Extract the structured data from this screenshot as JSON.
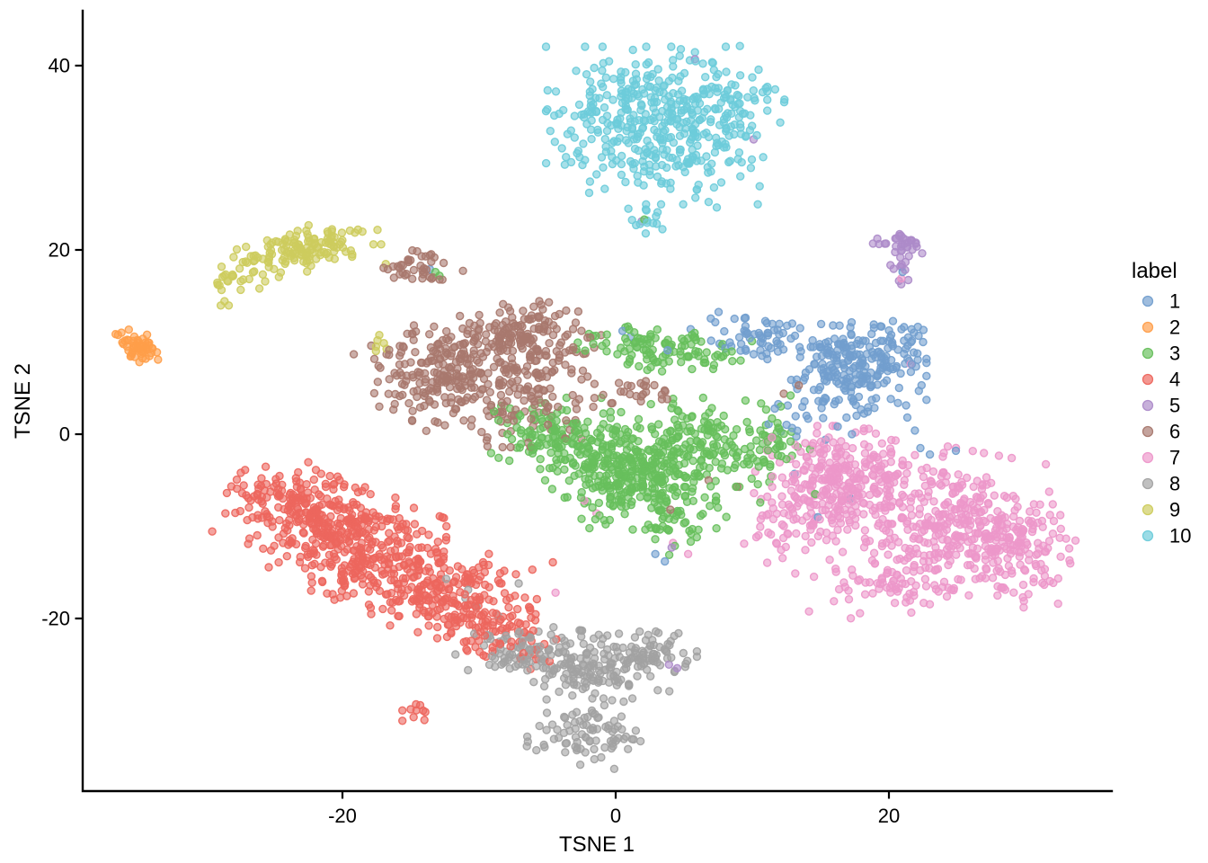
{
  "chart_data": {
    "type": "scatter",
    "title": "",
    "xlabel": "TSNE 1",
    "ylabel": "TSNE 2",
    "xlim": [
      -39,
      36.5
    ],
    "ylim": [
      -38.7,
      45.9
    ],
    "x_ticks": [
      -20,
      0,
      20
    ],
    "y_ticks": [
      -20,
      0,
      20,
      40
    ],
    "grid": false,
    "legend_title": "label",
    "legend_position": "right",
    "point_alpha": 0.6,
    "seed": 42,
    "series": [
      {
        "name": "1",
        "color": "#729ECE",
        "blobs": [
          {
            "x": 17.8,
            "y": 8.0,
            "sx": 2.2,
            "sy": 1.9,
            "rot": 0,
            "n": 200
          },
          {
            "x": 11.0,
            "y": 10.3,
            "sx": 2.6,
            "sy": 1.1,
            "rot": -12,
            "n": 70
          },
          {
            "x": 15.5,
            "y": 3.0,
            "sx": 2.6,
            "sy": 1.6,
            "rot": 0,
            "n": 45
          },
          {
            "x": 21.8,
            "y": 10.3,
            "sx": 0.8,
            "sy": 0.6,
            "rot": 0,
            "n": 10
          }
        ],
        "strays": [
          [
            0.5,
            11.2
          ],
          [
            1.1,
            10.6
          ],
          [
            3.8,
            9.1
          ],
          [
            -13.6,
            17.9
          ],
          [
            22.3,
            -1.5
          ],
          [
            23.0,
            -2.2
          ],
          [
            21.9,
            0.4
          ],
          [
            13.1,
            -4.3
          ],
          [
            17.2,
            -7.0
          ],
          [
            14.8,
            -9.0
          ],
          [
            21.0,
            17.6
          ],
          [
            2.9,
            -13.0
          ],
          [
            3.6,
            -13.8
          ],
          [
            22.5,
            10.0
          ],
          [
            24.9,
            -1.8
          ]
        ]
      },
      {
        "name": "2",
        "color": "#FF9E4A",
        "blobs": [
          {
            "x": -35.1,
            "y": 9.3,
            "sx": 0.6,
            "sy": 0.95,
            "rot": 35,
            "n": 50
          }
        ],
        "strays": [
          [
            -33.5,
            8.1
          ],
          [
            -34.3,
            10.8
          ]
        ]
      },
      {
        "name": "3",
        "color": "#67BF5C",
        "blobs": [
          {
            "x": -5.5,
            "y": -0.2,
            "sx": 1.7,
            "sy": 1.6,
            "rot": 0,
            "n": 90
          },
          {
            "x": 1.5,
            "y": -4.5,
            "sx": 2.6,
            "sy": 2.6,
            "rot": 0,
            "n": 300
          },
          {
            "x": 3.5,
            "y": 9.3,
            "sx": 2.8,
            "sy": 1.1,
            "rot": -8,
            "n": 110
          },
          {
            "x": 6.5,
            "y": -1.0,
            "sx": 2.4,
            "sy": 2.2,
            "rot": 0,
            "n": 130
          },
          {
            "x": -1.5,
            "y": -1.0,
            "sx": 2.0,
            "sy": 2.2,
            "rot": 0,
            "n": 80
          },
          {
            "x": 11.3,
            "y": -2.0,
            "sx": 1.3,
            "sy": 2.4,
            "rot": 0,
            "n": 45
          },
          {
            "x": 4.5,
            "y": -9.5,
            "sx": 1.6,
            "sy": 1.6,
            "rot": 0,
            "n": 40
          }
        ],
        "strays": [
          [
            -13.2,
            17.6
          ],
          [
            -12.9,
            17.2
          ],
          [
            2.1,
            23.3
          ],
          [
            12.8,
            4.2
          ],
          [
            14.6,
            -6.5
          ],
          [
            11.0,
            1.0
          ],
          [
            -8.9,
            2.5
          ]
        ]
      },
      {
        "name": "4",
        "color": "#ED665D",
        "blobs": [
          {
            "x": -22.5,
            "y": -8.5,
            "sx": 2.8,
            "sy": 2.2,
            "rot": -25,
            "n": 260
          },
          {
            "x": -17.5,
            "y": -13.0,
            "sx": 3.2,
            "sy": 2.6,
            "rot": -30,
            "n": 280
          },
          {
            "x": -12.0,
            "y": -18.0,
            "sx": 2.8,
            "sy": 2.0,
            "rot": -25,
            "n": 180
          },
          {
            "x": -8.0,
            "y": -21.5,
            "sx": 1.8,
            "sy": 1.4,
            "rot": -20,
            "n": 60
          },
          {
            "x": -14.6,
            "y": -30.4,
            "sx": 0.45,
            "sy": 0.5,
            "rot": 0,
            "n": 10
          }
        ],
        "strays": [
          [
            -9.3,
            -14.2
          ],
          [
            -7.3,
            -15.2
          ],
          [
            -6.1,
            -14.7
          ],
          [
            -4.6,
            -13.9
          ]
        ]
      },
      {
        "name": "5",
        "color": "#AD8BC9",
        "blobs": [
          {
            "x": 21.2,
            "y": 20.6,
            "sx": 0.55,
            "sy": 0.75,
            "rot": 0,
            "n": 26
          },
          {
            "x": 20.9,
            "y": 17.9,
            "sx": 0.35,
            "sy": 0.9,
            "rot": 0,
            "n": 12
          },
          {
            "x": 19.2,
            "y": 20.8,
            "sx": 0.5,
            "sy": 0.3,
            "rot": 0,
            "n": 5
          }
        ],
        "strays": [
          [
            5.8,
            40.7
          ],
          [
            10.1,
            32.0
          ],
          [
            1.9,
            23.1
          ],
          [
            3.9,
            -25.0
          ],
          [
            4.5,
            -25.4
          ],
          [
            4.1,
            -12.3
          ]
        ]
      },
      {
        "name": "6",
        "color": "#A8786E",
        "blobs": [
          {
            "x": -12.8,
            "y": 6.3,
            "sx": 2.4,
            "sy": 2.6,
            "rot": 20,
            "n": 210
          },
          {
            "x": -7.0,
            "y": 10.8,
            "sx": 2.6,
            "sy": 1.7,
            "rot": -10,
            "n": 170
          },
          {
            "x": -6.5,
            "y": 4.0,
            "sx": 2.3,
            "sy": 2.4,
            "rot": 0,
            "n": 110
          },
          {
            "x": -14.6,
            "y": 18.0,
            "sx": 1.5,
            "sy": 0.8,
            "rot": -15,
            "n": 40
          },
          {
            "x": 1.6,
            "y": 4.3,
            "sx": 1.4,
            "sy": 0.9,
            "rot": 0,
            "n": 25
          }
        ],
        "strays": [
          [
            -2.4,
            6.9
          ],
          [
            13.4,
            5.3
          ],
          [
            12.3,
            4.4
          ],
          [
            -2.5,
            -0.5
          ],
          [
            4.0,
            -8.2
          ],
          [
            -17.3,
            3.0
          ],
          [
            6.8,
            -5.0
          ],
          [
            8.9,
            -5.7
          ]
        ]
      },
      {
        "name": "7",
        "color": "#ED97CA",
        "blobs": [
          {
            "x": 16.5,
            "y": -4.5,
            "sx": 2.4,
            "sy": 2.4,
            "rot": 0,
            "n": 240
          },
          {
            "x": 23.5,
            "y": -9.5,
            "sx": 3.8,
            "sy": 3.6,
            "rot": -15,
            "n": 380
          },
          {
            "x": 29.5,
            "y": -13.0,
            "sx": 2.2,
            "sy": 2.4,
            "rot": 0,
            "n": 120
          },
          {
            "x": 13.0,
            "y": -9.0,
            "sx": 1.6,
            "sy": 2.2,
            "rot": 0,
            "n": 70
          },
          {
            "x": 20.0,
            "y": -16.5,
            "sx": 2.6,
            "sy": 1.6,
            "rot": 0,
            "n": 60
          }
        ],
        "strays": [
          [
            -2.3,
            -7.2
          ],
          [
            -1.4,
            -8.6
          ],
          [
            -4.4,
            -17.2
          ],
          [
            21.6,
            7.6
          ],
          [
            20.9,
            16.9
          ],
          [
            4.2,
            -11.8
          ],
          [
            5.3,
            -13.0
          ],
          [
            33.2,
            -12.4
          ]
        ]
      },
      {
        "name": "8",
        "color": "#A2A2A2",
        "blobs": [
          {
            "x": -6.5,
            "y": -23.5,
            "sx": 2.2,
            "sy": 1.4,
            "rot": -15,
            "n": 90
          },
          {
            "x": -1.5,
            "y": -25.0,
            "sx": 2.6,
            "sy": 1.6,
            "rot": -10,
            "n": 130
          },
          {
            "x": 2.8,
            "y": -23.8,
            "sx": 1.4,
            "sy": 1.1,
            "rot": 0,
            "n": 55
          },
          {
            "x": -2.0,
            "y": -32.5,
            "sx": 2.0,
            "sy": 1.7,
            "rot": 0,
            "n": 85
          }
        ],
        "strays": [
          [
            -10.8,
            -16.9
          ],
          [
            -10.2,
            -18.7
          ],
          [
            -11.0,
            -17.8
          ],
          [
            -7.1,
            -16.2
          ],
          [
            -12.4,
            -15.7
          ],
          [
            4.6,
            -21.6
          ],
          [
            -5.8,
            -34.3
          ]
        ]
      },
      {
        "name": "9",
        "color": "#CDCC5D",
        "blobs": [
          {
            "x": -22.3,
            "y": 20.2,
            "sx": 2.3,
            "sy": 1.1,
            "rot": 8,
            "n": 120
          },
          {
            "x": -26.8,
            "y": 18.0,
            "sx": 1.5,
            "sy": 1.0,
            "rot": 30,
            "n": 30
          },
          {
            "x": -28.8,
            "y": 16.0,
            "sx": 0.6,
            "sy": 0.9,
            "rot": 0,
            "n": 12
          },
          {
            "x": -17.2,
            "y": 10.0,
            "sx": 0.4,
            "sy": 0.8,
            "rot": 0,
            "n": 6
          }
        ],
        "strays": []
      },
      {
        "name": "10",
        "color": "#6DCCDA",
        "blobs": [
          {
            "x": 3.0,
            "y": 33.5,
            "sx": 3.6,
            "sy": 3.8,
            "rot": 0,
            "n": 400
          },
          {
            "x": 8.0,
            "y": 36.5,
            "sx": 2.0,
            "sy": 2.5,
            "rot": 0,
            "n": 60
          },
          {
            "x": 2.1,
            "y": 23.6,
            "sx": 0.7,
            "sy": 0.9,
            "rot": 0,
            "n": 14
          }
        ],
        "strays": [
          [
            6.8,
            25.2
          ],
          [
            7.4,
            24.6
          ]
        ]
      }
    ]
  }
}
